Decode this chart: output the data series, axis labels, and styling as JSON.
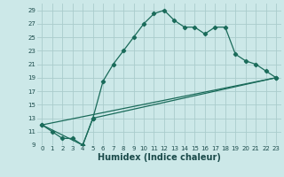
{
  "xlabel": "Humidex (Indice chaleur)",
  "bg_color": "#cce8e8",
  "grid_color": "#aacccc",
  "line_color": "#1a6b5a",
  "xlim": [
    -0.5,
    23.5
  ],
  "ylim": [
    9,
    30
  ],
  "xticks": [
    0,
    1,
    2,
    3,
    4,
    5,
    6,
    7,
    8,
    9,
    10,
    11,
    12,
    13,
    14,
    15,
    16,
    17,
    18,
    19,
    20,
    21,
    22,
    23
  ],
  "yticks": [
    9,
    11,
    13,
    15,
    17,
    19,
    21,
    23,
    25,
    27,
    29
  ],
  "line1_x": [
    0,
    1,
    2,
    3,
    4,
    5,
    6,
    7,
    8,
    9,
    10,
    11,
    12,
    13,
    14,
    15,
    16,
    17,
    18,
    19,
    20,
    21,
    22,
    23
  ],
  "line1_y": [
    12,
    11,
    10,
    10,
    9,
    13,
    18.5,
    21,
    23,
    25,
    27,
    28.5,
    29,
    27.5,
    26.5,
    26.5,
    25.5,
    26.5,
    26.5,
    22.5,
    21.5,
    21,
    20,
    19
  ],
  "line2_x": [
    0,
    4,
    5,
    23
  ],
  "line2_y": [
    12,
    9,
    13,
    19
  ],
  "line3_x": [
    0,
    23
  ],
  "line3_y": [
    12,
    19
  ],
  "xlabel_fontsize": 7,
  "tick_fontsize": 5
}
